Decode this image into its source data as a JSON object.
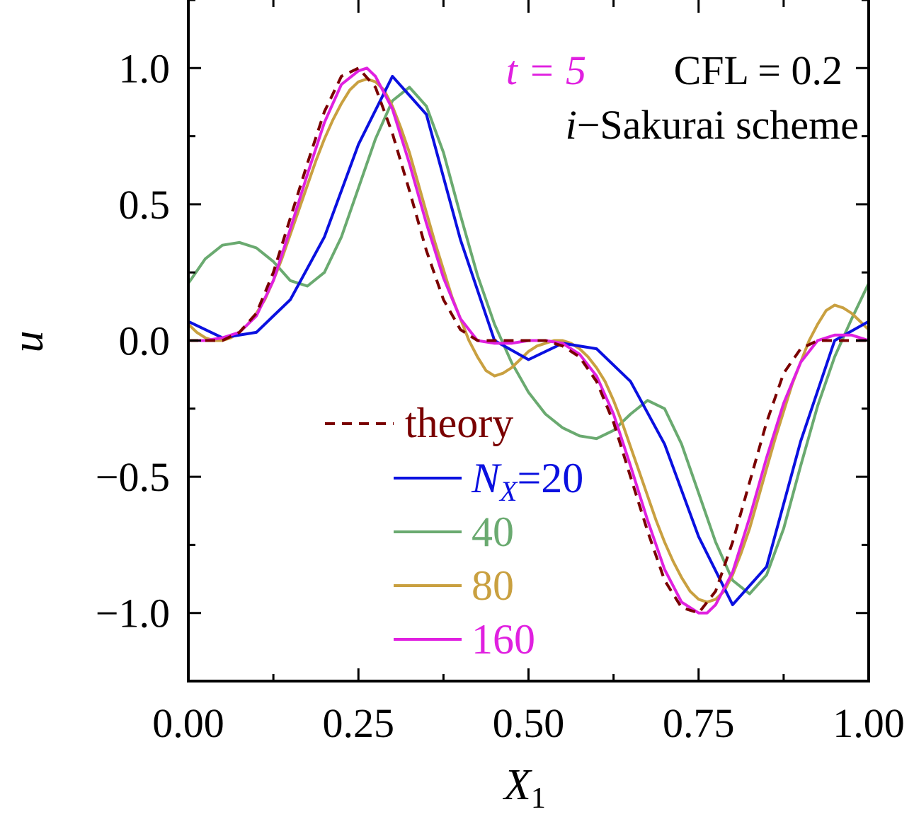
{
  "chart_data": {
    "type": "line",
    "xlabel": "X",
    "xlabel_sub": "1",
    "ylabel": "u",
    "xlim": [
      0.0,
      1.0
    ],
    "ylim": [
      -1.25,
      1.25
    ],
    "xticks": [
      0.0,
      0.25,
      0.5,
      0.75,
      1.0
    ],
    "xtick_labels": [
      "0.00",
      "0.25",
      "0.50",
      "0.75",
      "1.00"
    ],
    "yticks": [
      1.0,
      0.5,
      0.0,
      -0.5,
      -1.0
    ],
    "ytick_labels": [
      "1.0",
      "0.5",
      "0.0",
      "−0.5",
      "−1.0"
    ],
    "annotations": {
      "time": "t = 5",
      "cfl": "CFL = 0.2",
      "scheme_prefix": "i",
      "scheme_rest": "−Sakurai scheme"
    },
    "legend": {
      "placement": "lower-center",
      "nx_prefix": "N",
      "nx_sub": "X",
      "nx_eq": "=20"
    },
    "series": [
      {
        "name": "theory",
        "color": "#7a0000",
        "style": "dashed",
        "x": [
          0.0,
          0.025,
          0.05,
          0.075,
          0.1,
          0.125,
          0.15,
          0.175,
          0.2,
          0.225,
          0.25,
          0.275,
          0.3,
          0.325,
          0.35,
          0.375,
          0.4,
          0.425,
          0.45,
          0.475,
          0.5,
          0.525,
          0.55,
          0.575,
          0.6,
          0.625,
          0.65,
          0.675,
          0.7,
          0.725,
          0.75,
          0.775,
          0.8,
          0.825,
          0.85,
          0.875,
          0.9,
          0.925,
          0.95,
          0.975,
          1.0
        ],
        "y": [
          0.0,
          0.0,
          0.0,
          0.03,
          0.1,
          0.25,
          0.45,
          0.65,
          0.84,
          0.97,
          1.0,
          0.93,
          0.76,
          0.55,
          0.33,
          0.15,
          0.04,
          0.0,
          0.0,
          0.0,
          0.0,
          0.0,
          -0.02,
          -0.06,
          -0.15,
          -0.3,
          -0.5,
          -0.7,
          -0.88,
          -0.98,
          -1.0,
          -0.92,
          -0.74,
          -0.52,
          -0.3,
          -0.12,
          -0.03,
          0.0,
          0.0,
          0.0,
          0.0
        ]
      },
      {
        "name": "20",
        "color": "#0a10e0",
        "style": "solid",
        "x": [
          0.0,
          0.05,
          0.1,
          0.15,
          0.2,
          0.25,
          0.3,
          0.35,
          0.4,
          0.45,
          0.5,
          0.55,
          0.6,
          0.65,
          0.7,
          0.75,
          0.8,
          0.85,
          0.9,
          0.95,
          1.0
        ],
        "y": [
          0.07,
          0.01,
          0.03,
          0.15,
          0.38,
          0.72,
          0.97,
          0.83,
          0.37,
          0.0,
          -0.07,
          -0.01,
          -0.03,
          -0.15,
          -0.38,
          -0.72,
          -0.97,
          -0.83,
          -0.37,
          0.0,
          0.07
        ]
      },
      {
        "name": "40",
        "color": "#6aaa70",
        "style": "solid",
        "x": [
          0.0,
          0.025,
          0.05,
          0.075,
          0.1,
          0.125,
          0.15,
          0.175,
          0.2,
          0.225,
          0.25,
          0.275,
          0.3,
          0.325,
          0.35,
          0.375,
          0.4,
          0.425,
          0.45,
          0.475,
          0.5,
          0.525,
          0.55,
          0.575,
          0.6,
          0.625,
          0.65,
          0.675,
          0.7,
          0.725,
          0.75,
          0.775,
          0.8,
          0.825,
          0.85,
          0.875,
          0.9,
          0.925,
          0.95,
          0.975,
          1.0
        ],
        "y": [
          0.21,
          0.3,
          0.35,
          0.36,
          0.34,
          0.29,
          0.22,
          0.2,
          0.25,
          0.38,
          0.56,
          0.74,
          0.88,
          0.93,
          0.86,
          0.69,
          0.46,
          0.24,
          0.06,
          -0.08,
          -0.19,
          -0.27,
          -0.32,
          -0.35,
          -0.36,
          -0.33,
          -0.27,
          -0.22,
          -0.25,
          -0.38,
          -0.56,
          -0.74,
          -0.88,
          -0.93,
          -0.86,
          -0.69,
          -0.46,
          -0.24,
          -0.06,
          0.08,
          0.21
        ]
      },
      {
        "name": "80",
        "color": "#c9a040",
        "style": "solid",
        "x": [
          0.0,
          0.0125,
          0.025,
          0.0375,
          0.05,
          0.0625,
          0.075,
          0.0875,
          0.1,
          0.1125,
          0.125,
          0.1375,
          0.15,
          0.1625,
          0.175,
          0.1875,
          0.2,
          0.2125,
          0.225,
          0.2375,
          0.25,
          0.2625,
          0.275,
          0.2875,
          0.3,
          0.3125,
          0.325,
          0.3375,
          0.35,
          0.3625,
          0.375,
          0.3875,
          0.4,
          0.4125,
          0.425,
          0.4375,
          0.45,
          0.4625,
          0.475,
          0.4875,
          0.5,
          0.5125,
          0.525,
          0.5375,
          0.55,
          0.5625,
          0.575,
          0.5875,
          0.6,
          0.6125,
          0.625,
          0.6375,
          0.65,
          0.6625,
          0.675,
          0.6875,
          0.7,
          0.7125,
          0.725,
          0.7375,
          0.75,
          0.7625,
          0.775,
          0.7875,
          0.8,
          0.8125,
          0.825,
          0.8375,
          0.85,
          0.8625,
          0.875,
          0.8875,
          0.9,
          0.9125,
          0.925,
          0.9375,
          0.95,
          0.9625,
          0.975,
          0.9875,
          1.0
        ],
        "y": [
          0.06,
          0.03,
          0.01,
          0.0,
          0.0,
          0.01,
          0.03,
          0.06,
          0.1,
          0.15,
          0.22,
          0.3,
          0.39,
          0.48,
          0.57,
          0.66,
          0.74,
          0.81,
          0.87,
          0.92,
          0.95,
          0.96,
          0.95,
          0.92,
          0.86,
          0.78,
          0.69,
          0.58,
          0.47,
          0.36,
          0.26,
          0.16,
          0.08,
          0.0,
          -0.06,
          -0.11,
          -0.13,
          -0.12,
          -0.1,
          -0.07,
          -0.04,
          -0.02,
          -0.01,
          0.0,
          0.0,
          -0.01,
          -0.03,
          -0.06,
          -0.1,
          -0.15,
          -0.22,
          -0.3,
          -0.39,
          -0.48,
          -0.57,
          -0.66,
          -0.74,
          -0.81,
          -0.87,
          -0.92,
          -0.95,
          -0.96,
          -0.95,
          -0.92,
          -0.86,
          -0.78,
          -0.69,
          -0.58,
          -0.47,
          -0.36,
          -0.26,
          -0.16,
          -0.08,
          0.0,
          0.06,
          0.11,
          0.13,
          0.12,
          0.1,
          0.07,
          0.04
        ]
      },
      {
        "name": "160",
        "color": "#e020e0",
        "style": "solid",
        "x": [
          0.0,
          0.025,
          0.05,
          0.075,
          0.1,
          0.125,
          0.15,
          0.175,
          0.2,
          0.225,
          0.25,
          0.2625,
          0.275,
          0.3,
          0.325,
          0.35,
          0.375,
          0.4,
          0.425,
          0.45,
          0.475,
          0.5,
          0.525,
          0.55,
          0.575,
          0.6,
          0.625,
          0.65,
          0.675,
          0.7,
          0.725,
          0.75,
          0.7625,
          0.775,
          0.8,
          0.825,
          0.85,
          0.875,
          0.9,
          0.925,
          0.95,
          0.975,
          1.0
        ],
        "y": [
          0.0,
          0.0,
          0.01,
          0.03,
          0.09,
          0.22,
          0.41,
          0.61,
          0.8,
          0.94,
          0.99,
          1.0,
          0.97,
          0.85,
          0.65,
          0.43,
          0.23,
          0.08,
          0.0,
          -0.01,
          -0.01,
          0.0,
          0.0,
          -0.01,
          -0.05,
          -0.13,
          -0.27,
          -0.46,
          -0.66,
          -0.84,
          -0.96,
          -1.0,
          -1.0,
          -0.97,
          -0.85,
          -0.65,
          -0.43,
          -0.23,
          -0.08,
          0.0,
          0.02,
          0.02,
          0.0
        ]
      }
    ]
  }
}
